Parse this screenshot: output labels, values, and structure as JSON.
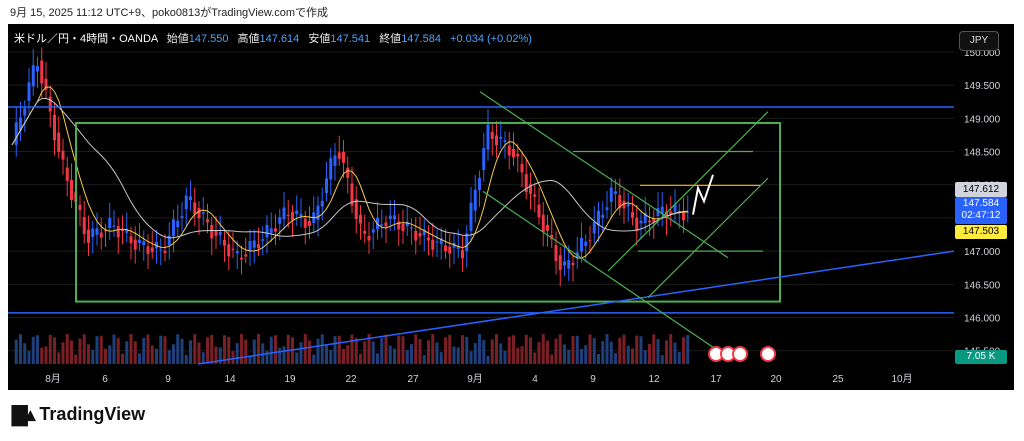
{
  "header": {
    "title": "9月 15, 2025 11:12 UTC+9、poko0813がTradingView.comで作成"
  },
  "symbol": {
    "name": "米ドル／円・4時間・OANDA",
    "open_label": "始値",
    "open": "147.550",
    "high_label": "高値",
    "high": "147.614",
    "low_label": "安値",
    "low": "147.541",
    "close_label": "終値",
    "close": "147.584",
    "change": "+0.034 (+0.02%)"
  },
  "currency_button": "JPY",
  "price_tags": {
    "last_price": "147.612",
    "close_price": "147.584",
    "countdown": "02:47:12",
    "level_price": "147.503",
    "volume": "7.05 K"
  },
  "colors": {
    "up": "#2962ff",
    "down": "#f23645",
    "box": "#4caf50",
    "blue_line": "#2962ff",
    "orange_line": "#ff9800",
    "ma_fast": "#f7c948",
    "ma_slow": "#c8c8c8"
  },
  "chart_data": {
    "type": "line",
    "title": "米ドル／円・4時間・OANDA",
    "y_ticks": [
      "150.000",
      "149.500",
      "149.000",
      "148.500",
      "148.000",
      "147.500",
      "147.000",
      "146.500",
      "146.000",
      "145.500"
    ],
    "x_ticks": [
      "8月",
      "6",
      "9",
      "14",
      "19",
      "22",
      "27",
      "9月",
      "4",
      "9",
      "12",
      "17",
      "20",
      "25",
      "10月"
    ],
    "ylim": [
      145.3,
      150.3
    ],
    "series": [
      {
        "x": [
          0,
          6,
          12,
          18,
          24,
          30,
          36,
          42,
          48,
          54,
          60,
          66,
          72,
          78,
          84,
          90,
          96,
          102,
          108,
          114,
          120,
          126,
          132,
          138,
          144,
          150,
          156,
          160
        ],
        "values": [
          148.6,
          149.9,
          148.3,
          147.2,
          147.4,
          147.1,
          147.0,
          147.8,
          147.3,
          146.9,
          147.2,
          147.6,
          147.4,
          148.6,
          147.2,
          147.5,
          147.3,
          147.1,
          147.0,
          148.8,
          148.5,
          147.6,
          146.7,
          147.2,
          147.9,
          147.4,
          147.6,
          147.58
        ]
      }
    ],
    "drawings": {
      "box": {
        "top": 148.93,
        "bottom": 146.24
      },
      "horizontal_lines": [
        149.17,
        146.07
      ],
      "orange_level": 147.99
    },
    "annotations": [
      "147.612",
      "147.584",
      "02:47:12",
      "147.503",
      "7.05 K"
    ]
  }
}
